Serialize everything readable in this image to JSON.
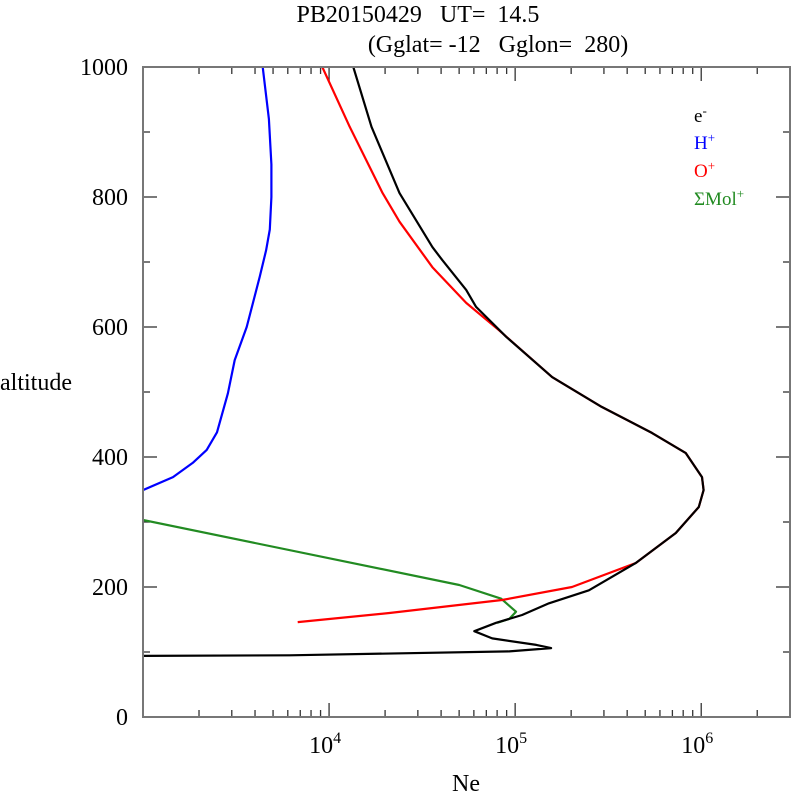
{
  "chart_data": {
    "type": "line",
    "title_line1": "PB20150429   UT=  14.5",
    "title_line2": "(Gglat= -12   Gglon=  280)",
    "xlabel": "Ne",
    "ylabel": "altitude",
    "xscale": "log",
    "xlim": [
      1000,
      3000000
    ],
    "ylim": [
      0,
      1000
    ],
    "x_major_ticks": [
      {
        "value": 10000,
        "base": "10",
        "exp": "4"
      },
      {
        "value": 100000,
        "base": "10",
        "exp": "5"
      },
      {
        "value": 1000000,
        "base": "10",
        "exp": "6"
      }
    ],
    "y_ticks": [
      {
        "value": 0,
        "label": "0"
      },
      {
        "value": 200,
        "label": "200"
      },
      {
        "value": 400,
        "label": "400"
      },
      {
        "value": 600,
        "label": "600"
      },
      {
        "value": 800,
        "label": "800"
      },
      {
        "value": 1000,
        "label": "1000"
      }
    ],
    "legend_position": "top-right",
    "series": [
      {
        "name": "e-",
        "label_base": "e",
        "label_sup": "-",
        "color": "#000000",
        "points": [
          [
            13500,
            1000
          ],
          [
            16900,
            908
          ],
          [
            23900,
            806
          ],
          [
            35900,
            723
          ],
          [
            40600,
            703
          ],
          [
            54600,
            657
          ],
          [
            61700,
            631
          ],
          [
            89500,
            585
          ],
          [
            158000,
            523
          ],
          [
            292000,
            477
          ],
          [
            543000,
            437
          ],
          [
            826000,
            406
          ],
          [
            1010000,
            369
          ],
          [
            1030000,
            349
          ],
          [
            970000,
            323
          ],
          [
            730000,
            283
          ],
          [
            445000,
            237
          ],
          [
            249000,
            195
          ],
          [
            152000,
            175
          ],
          [
            109000,
            157
          ],
          [
            79000,
            145
          ],
          [
            60300,
            132
          ],
          [
            75300,
            121
          ],
          [
            130000,
            111
          ],
          [
            156000,
            106
          ],
          [
            92900,
            101
          ],
          [
            6130,
            95
          ],
          [
            1000,
            94
          ]
        ]
      },
      {
        "name": "H+",
        "label_base": "H",
        "label_sup": "+",
        "color": "#0000ff",
        "points": [
          [
            4400,
            1000
          ],
          [
            4750,
            920
          ],
          [
            4900,
            850
          ],
          [
            4900,
            800
          ],
          [
            4800,
            750
          ],
          [
            4590,
            718
          ],
          [
            4240,
            677
          ],
          [
            3610,
            600
          ],
          [
            3110,
            549
          ],
          [
            2860,
            498
          ],
          [
            2500,
            438
          ],
          [
            2200,
            411
          ],
          [
            1850,
            391
          ],
          [
            1450,
            369
          ],
          [
            1000,
            349
          ]
        ]
      },
      {
        "name": "O+",
        "label_base": "O",
        "label_sup": "+",
        "color": "#ff0000",
        "points": [
          [
            9200,
            1000
          ],
          [
            12900,
            908
          ],
          [
            19400,
            806
          ],
          [
            23900,
            762
          ],
          [
            35900,
            692
          ],
          [
            54600,
            637
          ],
          [
            82000,
            595
          ],
          [
            158000,
            523
          ],
          [
            292000,
            477
          ],
          [
            543000,
            437
          ],
          [
            826000,
            406
          ],
          [
            1010000,
            369
          ],
          [
            1030000,
            349
          ],
          [
            970000,
            323
          ],
          [
            730000,
            283
          ],
          [
            445000,
            237
          ],
          [
            202000,
            200
          ],
          [
            85000,
            180
          ],
          [
            21100,
            160
          ],
          [
            6780,
            146
          ]
        ]
      },
      {
        "name": "ΣMol+",
        "label_base": "ΣMol",
        "label_sup": "+",
        "color": "#228b22",
        "points": [
          [
            1000,
            303
          ],
          [
            50100,
            203
          ],
          [
            84100,
            182
          ],
          [
            101000,
            162
          ],
          [
            93000,
            151
          ],
          [
            80000,
            145
          ]
        ]
      }
    ]
  }
}
